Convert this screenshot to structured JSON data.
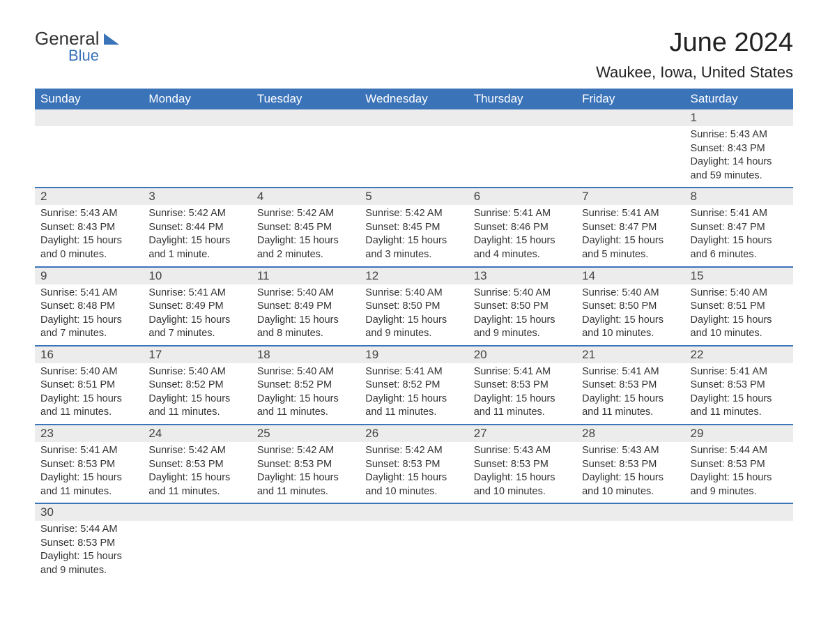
{
  "logo": {
    "general": "General",
    "blue": "Blue"
  },
  "title": "June 2024",
  "location": "Waukee, Iowa, United States",
  "weekdays": [
    "Sunday",
    "Monday",
    "Tuesday",
    "Wednesday",
    "Thursday",
    "Friday",
    "Saturday"
  ],
  "colors": {
    "header_bg": "#3b73b9",
    "header_text": "#ffffff",
    "daynum_bg": "#ececec",
    "row_border": "#3b73b9",
    "body_text": "#333333"
  },
  "weeks": [
    {
      "nums": [
        "",
        "",
        "",
        "",
        "",
        "",
        "1"
      ],
      "info": [
        "",
        "",
        "",
        "",
        "",
        "",
        "Sunrise: 5:43 AM\nSunset: 8:43 PM\nDaylight: 14 hours and 59 minutes."
      ]
    },
    {
      "nums": [
        "2",
        "3",
        "4",
        "5",
        "6",
        "7",
        "8"
      ],
      "info": [
        "Sunrise: 5:43 AM\nSunset: 8:43 PM\nDaylight: 15 hours and 0 minutes.",
        "Sunrise: 5:42 AM\nSunset: 8:44 PM\nDaylight: 15 hours and 1 minute.",
        "Sunrise: 5:42 AM\nSunset: 8:45 PM\nDaylight: 15 hours and 2 minutes.",
        "Sunrise: 5:42 AM\nSunset: 8:45 PM\nDaylight: 15 hours and 3 minutes.",
        "Sunrise: 5:41 AM\nSunset: 8:46 PM\nDaylight: 15 hours and 4 minutes.",
        "Sunrise: 5:41 AM\nSunset: 8:47 PM\nDaylight: 15 hours and 5 minutes.",
        "Sunrise: 5:41 AM\nSunset: 8:47 PM\nDaylight: 15 hours and 6 minutes."
      ]
    },
    {
      "nums": [
        "9",
        "10",
        "11",
        "12",
        "13",
        "14",
        "15"
      ],
      "info": [
        "Sunrise: 5:41 AM\nSunset: 8:48 PM\nDaylight: 15 hours and 7 minutes.",
        "Sunrise: 5:41 AM\nSunset: 8:49 PM\nDaylight: 15 hours and 7 minutes.",
        "Sunrise: 5:40 AM\nSunset: 8:49 PM\nDaylight: 15 hours and 8 minutes.",
        "Sunrise: 5:40 AM\nSunset: 8:50 PM\nDaylight: 15 hours and 9 minutes.",
        "Sunrise: 5:40 AM\nSunset: 8:50 PM\nDaylight: 15 hours and 9 minutes.",
        "Sunrise: 5:40 AM\nSunset: 8:50 PM\nDaylight: 15 hours and 10 minutes.",
        "Sunrise: 5:40 AM\nSunset: 8:51 PM\nDaylight: 15 hours and 10 minutes."
      ]
    },
    {
      "nums": [
        "16",
        "17",
        "18",
        "19",
        "20",
        "21",
        "22"
      ],
      "info": [
        "Sunrise: 5:40 AM\nSunset: 8:51 PM\nDaylight: 15 hours and 11 minutes.",
        "Sunrise: 5:40 AM\nSunset: 8:52 PM\nDaylight: 15 hours and 11 minutes.",
        "Sunrise: 5:40 AM\nSunset: 8:52 PM\nDaylight: 15 hours and 11 minutes.",
        "Sunrise: 5:41 AM\nSunset: 8:52 PM\nDaylight: 15 hours and 11 minutes.",
        "Sunrise: 5:41 AM\nSunset: 8:53 PM\nDaylight: 15 hours and 11 minutes.",
        "Sunrise: 5:41 AM\nSunset: 8:53 PM\nDaylight: 15 hours and 11 minutes.",
        "Sunrise: 5:41 AM\nSunset: 8:53 PM\nDaylight: 15 hours and 11 minutes."
      ]
    },
    {
      "nums": [
        "23",
        "24",
        "25",
        "26",
        "27",
        "28",
        "29"
      ],
      "info": [
        "Sunrise: 5:41 AM\nSunset: 8:53 PM\nDaylight: 15 hours and 11 minutes.",
        "Sunrise: 5:42 AM\nSunset: 8:53 PM\nDaylight: 15 hours and 11 minutes.",
        "Sunrise: 5:42 AM\nSunset: 8:53 PM\nDaylight: 15 hours and 11 minutes.",
        "Sunrise: 5:42 AM\nSunset: 8:53 PM\nDaylight: 15 hours and 10 minutes.",
        "Sunrise: 5:43 AM\nSunset: 8:53 PM\nDaylight: 15 hours and 10 minutes.",
        "Sunrise: 5:43 AM\nSunset: 8:53 PM\nDaylight: 15 hours and 10 minutes.",
        "Sunrise: 5:44 AM\nSunset: 8:53 PM\nDaylight: 15 hours and 9 minutes."
      ]
    },
    {
      "nums": [
        "30",
        "",
        "",
        "",
        "",
        "",
        ""
      ],
      "info": [
        "Sunrise: 5:44 AM\nSunset: 8:53 PM\nDaylight: 15 hours and 9 minutes.",
        "",
        "",
        "",
        "",
        "",
        ""
      ]
    }
  ]
}
